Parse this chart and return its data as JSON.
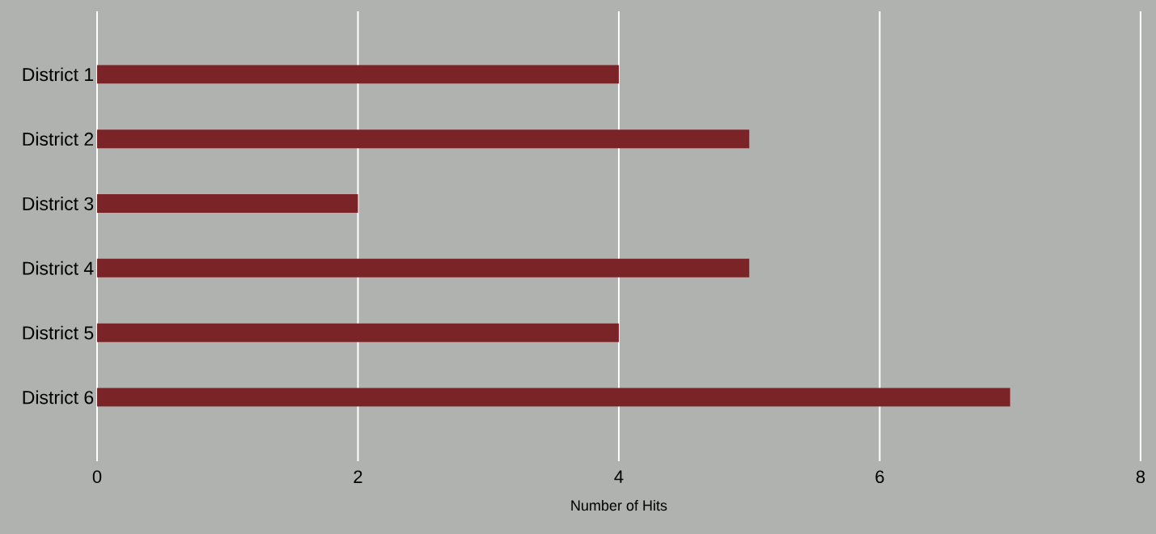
{
  "chart_data": {
    "type": "bar",
    "orientation": "horizontal",
    "xlabel": "Number of Hits",
    "categories": [
      "District 1",
      "District 2",
      "District 3",
      "District 4",
      "District 5",
      "District 6"
    ],
    "values": [
      4,
      5,
      2,
      5,
      4,
      7
    ],
    "color": "#7b2428",
    "xlim": [
      0,
      8
    ],
    "xticks": [
      0,
      2,
      4,
      6,
      8
    ],
    "grid": "x"
  }
}
